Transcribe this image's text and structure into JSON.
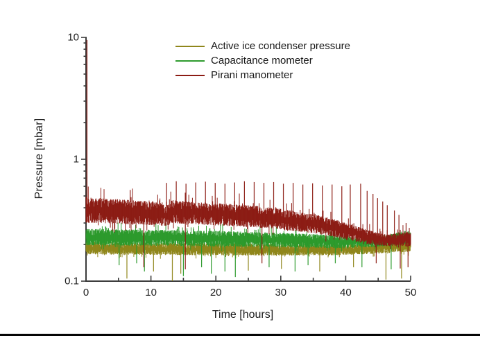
{
  "figure": {
    "background": "#ffffff",
    "text_color": "#1c1c1c"
  },
  "chart_data": {
    "type": "line",
    "title": "",
    "xlabel": "Time [hours]",
    "ylabel": "Pressure [mbar]",
    "axis_color": "#3a3a3a",
    "grid": false,
    "legend_position": "top-center-inside",
    "x_axis": {
      "scale": "linear",
      "min": 0,
      "max": 50,
      "major_ticks": [
        0,
        10,
        20,
        30,
        40,
        50
      ],
      "tick_labels": [
        "0",
        "10",
        "20",
        "30",
        "40",
        "50"
      ],
      "minor_ticks": [
        5,
        15,
        25,
        35,
        45
      ]
    },
    "y_axis": {
      "scale": "log",
      "min": 0.1,
      "max": 10,
      "major_ticks": [
        0.1,
        1,
        10
      ],
      "tick_labels": [
        "0.1",
        "1",
        "10"
      ]
    },
    "series": [
      {
        "name": "Active ice condenser pressure",
        "color": "#8f861b",
        "style": "noisy-band",
        "envelope": {
          "t": [
            0,
            10,
            20,
            30,
            38,
            43,
            46,
            48,
            50
          ],
          "low": [
            0.166,
            0.164,
            0.163,
            0.162,
            0.163,
            0.166,
            0.17,
            0.173,
            0.174
          ],
          "high": [
            0.21,
            0.206,
            0.204,
            0.201,
            0.2,
            0.204,
            0.21,
            0.214,
            0.218
          ]
        },
        "spikes_up": [],
        "spikes_down": [
          [
            6.3,
            0.105
          ],
          [
            10.4,
            0.12
          ],
          [
            13.3,
            0.1
          ],
          [
            14.6,
            0.115
          ],
          [
            25.0,
            0.122
          ],
          [
            30.1,
            0.126
          ],
          [
            36.0,
            0.12
          ],
          [
            41.2,
            0.13
          ],
          [
            46.2,
            0.103
          ],
          [
            48.6,
            0.105
          ]
        ]
      },
      {
        "name": "Capacitance mometer",
        "color": "#2c9a2c",
        "style": "noisy-band",
        "envelope": {
          "t": [
            0,
            5,
            10,
            15,
            20,
            25,
            30,
            35,
            38,
            41,
            44,
            46,
            47.5,
            49,
            50
          ],
          "low": [
            0.197,
            0.196,
            0.195,
            0.194,
            0.192,
            0.191,
            0.19,
            0.188,
            0.187,
            0.188,
            0.19,
            0.193,
            0.198,
            0.2,
            0.2
          ],
          "high": [
            0.268,
            0.266,
            0.264,
            0.262,
            0.258,
            0.254,
            0.249,
            0.243,
            0.238,
            0.232,
            0.228,
            0.235,
            0.248,
            0.258,
            0.255
          ]
        },
        "spikes_up": [
          [
            36.2,
            0.295
          ]
        ],
        "spikes_down": [
          [
            5.1,
            0.135
          ],
          [
            7.8,
            0.14
          ],
          [
            9.0,
            0.12
          ],
          [
            15.0,
            0.11
          ],
          [
            17.8,
            0.13
          ],
          [
            19.3,
            0.115
          ],
          [
            21.4,
            0.12
          ],
          [
            23.0,
            0.108
          ],
          [
            28.2,
            0.13
          ],
          [
            32.2,
            0.12
          ],
          [
            34.2,
            0.135
          ],
          [
            38.4,
            0.14
          ],
          [
            42.5,
            0.13
          ],
          [
            47.0,
            0.125
          ]
        ]
      },
      {
        "name": "Pirani manometer",
        "color": "#8c1c14",
        "style": "noisy-band",
        "envelope": {
          "t": [
            0,
            1,
            5,
            9,
            12,
            12.9,
            13.1,
            18,
            22,
            26,
            30,
            33,
            36,
            38,
            40,
            42,
            43.5,
            45,
            46.5,
            47.5,
            48.5,
            49.3,
            50
          ],
          "low": [
            0.3,
            0.3,
            0.295,
            0.29,
            0.285,
            0.285,
            0.3,
            0.29,
            0.283,
            0.276,
            0.266,
            0.255,
            0.243,
            0.232,
            0.22,
            0.208,
            0.2,
            0.196,
            0.193,
            0.195,
            0.196,
            0.19,
            0.193
          ],
          "high": [
            0.495,
            0.48,
            0.47,
            0.455,
            0.435,
            0.43,
            0.465,
            0.445,
            0.43,
            0.415,
            0.392,
            0.37,
            0.345,
            0.325,
            0.3,
            0.278,
            0.262,
            0.248,
            0.24,
            0.245,
            0.25,
            0.258,
            0.24
          ]
        },
        "spikes_up": [
          [
            0.15,
            9.5
          ],
          [
            6.8,
            0.56
          ],
          [
            12.4,
            0.64
          ],
          [
            13.9,
            0.66
          ],
          [
            15.4,
            0.63
          ],
          [
            16.9,
            0.645
          ],
          [
            18.4,
            0.655
          ],
          [
            19.9,
            0.64
          ],
          [
            21.4,
            0.63
          ],
          [
            22.9,
            0.645
          ],
          [
            24.4,
            0.66
          ],
          [
            25.9,
            0.65
          ],
          [
            27.4,
            0.64
          ],
          [
            28.9,
            0.65
          ],
          [
            30.4,
            0.63
          ],
          [
            31.9,
            0.64
          ],
          [
            33.4,
            0.62
          ],
          [
            34.9,
            0.635
          ],
          [
            36.4,
            0.61
          ],
          [
            37.9,
            0.62
          ],
          [
            39.4,
            0.6
          ],
          [
            40.7,
            0.62
          ],
          [
            42.3,
            0.63
          ],
          [
            43.3,
            0.55
          ],
          [
            44.2,
            0.52
          ],
          [
            44.9,
            0.48
          ],
          [
            45.7,
            0.45
          ],
          [
            46.4,
            0.42
          ],
          [
            47.5,
            0.38
          ],
          [
            48.2,
            0.35
          ],
          [
            49.3,
            0.3
          ]
        ],
        "spikes_down": [
          [
            8.9,
            0.13
          ],
          [
            15.3,
            0.125
          ],
          [
            27.1,
            0.14
          ],
          [
            44.7,
            0.14
          ],
          [
            48.4,
            0.127
          ],
          [
            49.6,
            0.13
          ]
        ]
      }
    ]
  }
}
